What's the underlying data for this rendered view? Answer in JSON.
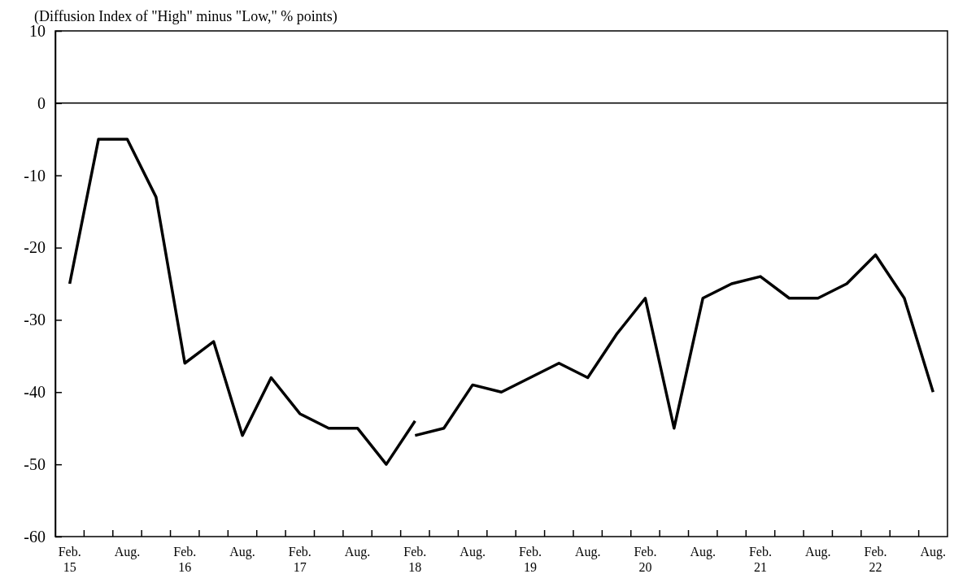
{
  "chart_data": {
    "type": "line",
    "ylabel": "(Diffusion Index of \"High\" minus \"Low,\" % points)",
    "categories": [
      "Feb. 15",
      null,
      "Aug.",
      null,
      "Feb. 16",
      null,
      "Aug.",
      null,
      "Feb. 17",
      null,
      "Aug.",
      null,
      "Feb. 18",
      null,
      "Aug.",
      null,
      "Feb. 19",
      null,
      "Aug.",
      null,
      "Feb. 20",
      null,
      "Aug.",
      null,
      "Feb. 21",
      null,
      "Aug.",
      null,
      "Feb. 22",
      null,
      "Aug."
    ],
    "series": [
      {
        "color": "#000000",
        "values": [
          -25,
          -5,
          -5,
          -13,
          -36,
          -33,
          -46,
          -38,
          -43,
          -45,
          -45,
          -50,
          -44,
          null,
          null,
          null,
          null,
          null,
          null,
          null,
          null,
          null,
          null,
          null,
          null,
          null,
          null,
          null,
          null,
          null,
          null
        ]
      },
      {
        "color": "#000000",
        "values": [
          null,
          null,
          null,
          null,
          null,
          null,
          null,
          null,
          null,
          null,
          null,
          null,
          -46,
          -45,
          -39,
          -40,
          -38,
          -36,
          -38,
          -32,
          -27,
          -45,
          -27,
          -25,
          -24,
          -27,
          -27,
          -25,
          -21,
          -27,
          -40
        ]
      }
    ],
    "ylim": [
      -60,
      10
    ],
    "yticks": [
      -60,
      -50,
      -40,
      -30,
      -20,
      -10,
      0,
      10
    ],
    "ref_lines": [
      {
        "axis": "y",
        "value": 0,
        "color": "#000000"
      }
    ],
    "marker": "none",
    "line_style": "solid"
  }
}
